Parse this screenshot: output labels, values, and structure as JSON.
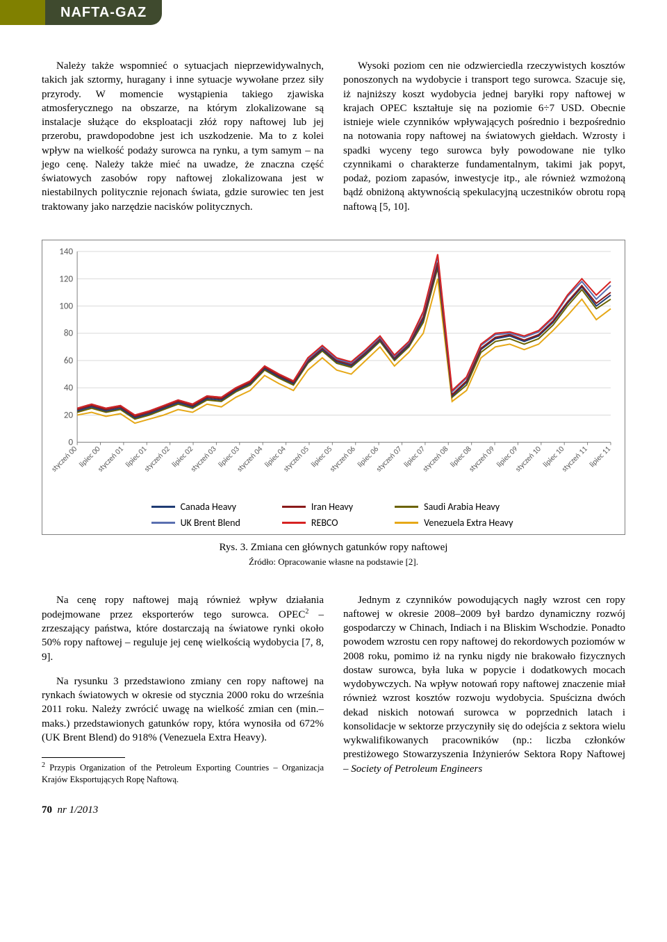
{
  "header": {
    "journal": "NAFTA-GAZ"
  },
  "top": {
    "left": {
      "p1": "Należy także wspomnieć o sytuacjach nieprzewidywalnych, takich jak sztormy, huragany i inne sytuacje wywołane przez siły przyrody. W momencie wystąpienia takiego zjawiska atmosferycznego na obszarze, na którym zlokalizowane są instalacje służące do eksploatacji złóż ropy naftowej lub jej przerobu, prawdopodobne jest ich uszkodzenie. Ma to z kolei wpływ na wielkość podaży surowca na rynku, a tym samym – na jego cenę. Należy także mieć na uwadze, że znaczna część światowych zasobów ropy naftowej zlokalizowana jest w niestabilnych politycznie rejonach świata, gdzie surowiec ten jest traktowany jako narzędzie nacisków politycznych."
    },
    "right": {
      "p1": "Wysoki poziom cen nie odzwierciedla rzeczywistych kosztów ponoszonych na wydobycie i transport tego surowca. Szacuje się, iż najniższy koszt wydobycia jednej baryłki ropy naftowej w krajach OPEC kształtuje się na poziomie 6÷7 USD. Obecnie istnieje wiele czynników wpływających pośrednio i bezpośrednio na notowania ropy naftowej na światowych giełdach. Wzrosty i spadki wyceny tego surowca były powodowane nie tylko czynnikami o charakterze fundamentalnym, takimi jak popyt, podaż, poziom zapasów, inwestycje itp., ale również wzmożoną bądź obniżoną aktywnością spekulacyjną uczestników obrotu ropą naftową [5, 10]."
    }
  },
  "chart": {
    "type": "line",
    "ylim": [
      0,
      140
    ],
    "ytick_step": 20,
    "x_labels": [
      "styczeń 00",
      "lipiec 00",
      "styczeń 01",
      "lipiec 01",
      "styczeń 02",
      "lipiec 02",
      "styczeń 03",
      "lipiec 03",
      "styczeń 04",
      "lipiec 04",
      "styczeń 05",
      "lipiec 05",
      "styczeń 06",
      "lipiec 06",
      "styczeń 07",
      "lipiec 07",
      "styczeń 08",
      "lipiec 08",
      "styczeń 09",
      "lipiec 09",
      "styczeń 10",
      "lipiec 10",
      "styczeń 11",
      "lipiec 11"
    ],
    "colors": {
      "Canada Heavy": "#1f3b73",
      "UK Brent Blend": "#5a6fb0",
      "Iran Heavy": "#8a1a1a",
      "REBCO": "#d62222",
      "Saudi Arabia Heavy": "#6b6300",
      "Venezuela Extra Heavy": "#e6a817"
    },
    "legend": [
      [
        "Canada Heavy",
        "UK Brent Blend"
      ],
      [
        "Iran Heavy",
        "REBCO"
      ],
      [
        "Saudi Arabia Heavy",
        "Venezuela Extra Heavy"
      ]
    ],
    "background_color": "#ffffff",
    "grid_color": "#d9d9d9",
    "border_color": "#808080",
    "axis_fontsize": 13,
    "series": {
      "Venezuela Extra Heavy": [
        20,
        22,
        19,
        21,
        14,
        17,
        20,
        24,
        22,
        28,
        26,
        33,
        38,
        49,
        43,
        38,
        53,
        62,
        53,
        50,
        60,
        70,
        56,
        66,
        80,
        120,
        30,
        38,
        62,
        70,
        72,
        68,
        72,
        82,
        93,
        105,
        90,
        98
      ],
      "Saudi Arabia Heavy": [
        22,
        25,
        22,
        24,
        17,
        20,
        24,
        28,
        25,
        31,
        30,
        37,
        42,
        53,
        47,
        42,
        58,
        67,
        58,
        55,
        64,
        74,
        60,
        70,
        88,
        128,
        33,
        42,
        66,
        74,
        76,
        72,
        76,
        86,
        100,
        112,
        98,
        105
      ],
      "Canada Heavy": [
        23,
        26,
        23,
        25,
        18,
        21,
        25,
        29,
        26,
        32,
        31,
        38,
        43,
        54,
        48,
        43,
        59,
        68,
        59,
        56,
        65,
        75,
        61,
        71,
        90,
        130,
        34,
        44,
        68,
        76,
        78,
        74,
        78,
        88,
        102,
        114,
        100,
        108
      ],
      "Iran Heavy": [
        24,
        27,
        24,
        26,
        19,
        22,
        26,
        30,
        27,
        33,
        32,
        39,
        44,
        55,
        49,
        44,
        60,
        69,
        60,
        57,
        66,
        76,
        62,
        72,
        92,
        132,
        35,
        45,
        69,
        77,
        79,
        75,
        79,
        89,
        103,
        115,
        102,
        110
      ],
      "UK Brent Blend": [
        25,
        28,
        25,
        27,
        20,
        23,
        27,
        31,
        28,
        34,
        33,
        40,
        45,
        56,
        50,
        45,
        61,
        70,
        61,
        58,
        67,
        77,
        63,
        73,
        95,
        136,
        37,
        47,
        71,
        79,
        80,
        77,
        81,
        91,
        107,
        118,
        105,
        115
      ],
      "REBCO": [
        25,
        28,
        25,
        27,
        20,
        23,
        27,
        31,
        28,
        34,
        33,
        40,
        45,
        56,
        50,
        45,
        62,
        71,
        62,
        59,
        68,
        78,
        64,
        74,
        96,
        138,
        38,
        48,
        72,
        80,
        81,
        78,
        82,
        92,
        108,
        120,
        108,
        118
      ]
    },
    "caption": "Rys. 3. Zmiana cen głównych gatunków ropy naftowej",
    "source": "Źródło: Opracowanie własne na podstawie [2]."
  },
  "bottom": {
    "left": {
      "p1_pre": "Na cenę ropy naftowej mają również wpływ działania podejmowane przez eksporterów tego surowca. OPEC",
      "p1_post": " – zrzeszający państwa, które dostarczają na światowe rynki około 50% ropy naftowej – reguluje jej cenę wielkością wydobycia [7, 8, 9].",
      "p2": "Na rysunku 3 przedstawiono zmiany cen ropy naftowej na rynkach światowych w okresie od stycznia 2000 roku do września 2011 roku. Należy zwrócić uwagę na wielkość zmian cen (min.–maks.) przedstawionych gatunków ropy, która wynosiła od 672% (UK Brent Blend) do 918% (Venezuela Extra Heavy).",
      "fn_num": "2",
      "fn": " Przypis Organization of the Petroleum Exporting Countries – Organizacja Krajów Eksportujących Ropę Naftową."
    },
    "right": {
      "p1_a": "Jednym z czynników powodujących nagły wzrost cen ropy naftowej w okresie 2008–2009 był bardzo dynamiczny rozwój gospodarczy w Chinach, Indiach i na Bliskim Wschodzie. Ponadto powodem wzrostu cen ropy naftowej do rekordowych poziomów w 2008 roku, pomimo iż na rynku nigdy nie brakowało fizycznych dostaw surowca, była luka w popycie i dodatkowych mocach wydobywczych. Na wpływ notowań ropy naftowej znaczenie miał również wzrost kosztów rozwoju wydobycia. Spuścizna dwóch dekad niskich notowań surowca w poprzednich latach i konsolidacje w sektorze przyczyniły się do odejścia z sektora wielu wykwalifikowanych pracowników (np.: liczba członków prestiżowego Stowarzyszenia Inżynierów Sektora Ropy Naftowej – ",
      "p1_it": "Society of Petroleum Engineers"
    }
  },
  "footer": {
    "page": "70",
    "issue": "nr 1/2013"
  }
}
